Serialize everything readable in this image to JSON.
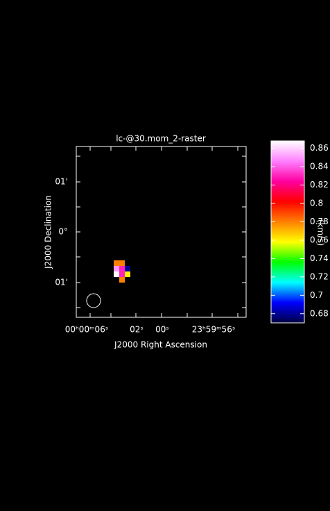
{
  "chart_data": {
    "type": "raster",
    "title": "lc-@30.mom_2-raster",
    "x_label": "J2000 Right Ascension",
    "y_label": "J2000 Declination",
    "x_tick_labels": [
      "00ʰ00ᵐ06ˢ",
      "02ˢ",
      "00ˢ",
      "23ʰ59ᵐ56ˢ"
    ],
    "y_tick_labels": [
      "01'",
      "0°",
      "01'"
    ],
    "pixels": [
      [
        0.78,
        0.78,
        null
      ],
      [
        0.85,
        0.83,
        0.68
      ],
      [
        0.87,
        0.83,
        0.76
      ],
      [
        null,
        0.78,
        null
      ]
    ],
    "colorbar": {
      "label": "(km/s)",
      "ylim": [
        0.67,
        0.868
      ],
      "yticks": [
        0.68,
        0.7,
        0.72,
        0.74,
        0.76,
        0.78,
        0.8,
        0.82,
        0.84,
        0.86
      ],
      "colormap": [
        "#000040",
        "#0000ff",
        "#00ffff",
        "#00ff00",
        "#ffff00",
        "#ff8000",
        "#ff0000",
        "#ff00a0",
        "#ff80ff",
        "#ffffff"
      ]
    }
  }
}
